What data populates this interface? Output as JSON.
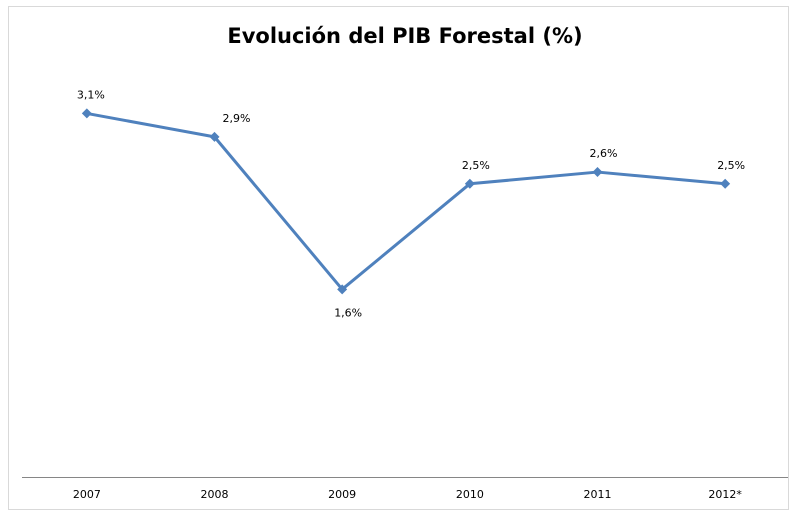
{
  "chart_data": {
    "type": "line",
    "title": "Evolución del PIB Forestal (%)",
    "categories": [
      "2007",
      "2008",
      "2009",
      "2010",
      "2011",
      "2012*"
    ],
    "series": [
      {
        "name": "PIB Forestal",
        "color": "#4f81bd",
        "values": [
          3.1,
          2.9,
          1.6,
          2.5,
          2.6,
          2.5
        ],
        "value_labels": [
          "3,1%",
          "2,9%",
          "1,6%",
          "2,5%",
          "2,6%",
          "2,5%"
        ]
      }
    ],
    "ylim": [
      0,
      3.5
    ]
  }
}
